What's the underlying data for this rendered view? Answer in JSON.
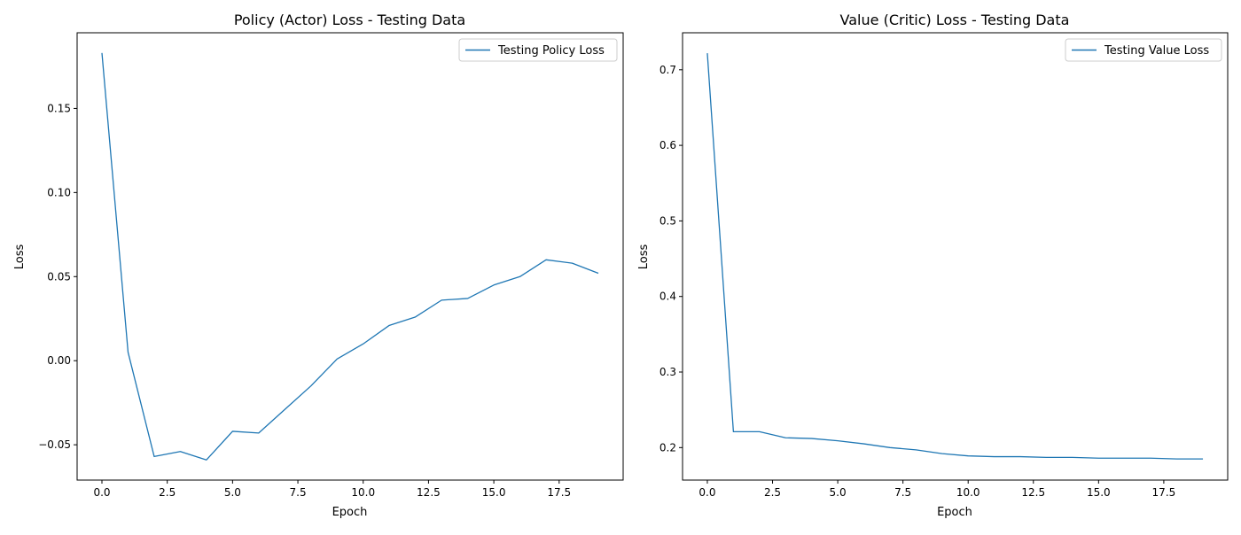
{
  "chart_data": [
    {
      "type": "line",
      "title": "Policy (Actor) Loss - Testing Data",
      "xlabel": "Epoch",
      "ylabel": "Loss",
      "xlim": [
        -0.95,
        19.95
      ],
      "ylim": [
        -0.071,
        0.195
      ],
      "xticks": [
        0,
        2.5,
        5,
        7.5,
        10,
        12.5,
        15,
        17.5
      ],
      "xtick_labels": [
        "0.0",
        "2.5",
        "5.0",
        "7.5",
        "10.0",
        "12.5",
        "15.0",
        "17.5"
      ],
      "yticks": [
        -0.05,
        0,
        0.05,
        0.1,
        0.15
      ],
      "ytick_labels": [
        "−0.05",
        "0.00",
        "0.05",
        "0.10",
        "0.15"
      ],
      "grid": false,
      "legend_position": "top-right",
      "color": "#1f77b4",
      "series": [
        {
          "name": "Testing Policy Loss",
          "x": [
            0,
            1,
            2,
            3,
            4,
            5,
            6,
            7,
            8,
            9,
            10,
            11,
            12,
            13,
            14,
            15,
            16,
            17,
            18,
            19
          ],
          "values": [
            0.183,
            0.005,
            -0.057,
            -0.054,
            -0.059,
            -0.042,
            -0.043,
            -0.029,
            -0.015,
            0.001,
            0.01,
            0.021,
            0.026,
            0.036,
            0.037,
            0.045,
            0.05,
            0.06,
            0.058,
            0.052
          ]
        }
      ]
    },
    {
      "type": "line",
      "title": "Value (Critic) Loss - Testing Data",
      "xlabel": "Epoch",
      "ylabel": "Loss",
      "xlim": [
        -0.95,
        19.95
      ],
      "ylim": [
        0.157,
        0.749
      ],
      "xticks": [
        0,
        2.5,
        5,
        7.5,
        10,
        12.5,
        15,
        17.5
      ],
      "xtick_labels": [
        "0.0",
        "2.5",
        "5.0",
        "7.5",
        "10.0",
        "12.5",
        "15.0",
        "17.5"
      ],
      "yticks": [
        0.2,
        0.3,
        0.4,
        0.5,
        0.6,
        0.7
      ],
      "ytick_labels": [
        "0.2",
        "0.3",
        "0.4",
        "0.5",
        "0.6",
        "0.7"
      ],
      "grid": false,
      "legend_position": "top-right",
      "color": "#1f77b4",
      "series": [
        {
          "name": "Testing Value Loss",
          "x": [
            0,
            1,
            2,
            3,
            4,
            5,
            6,
            7,
            8,
            9,
            10,
            11,
            12,
            13,
            14,
            15,
            16,
            17,
            18,
            19
          ],
          "values": [
            0.722,
            0.221,
            0.221,
            0.213,
            0.212,
            0.209,
            0.205,
            0.2,
            0.197,
            0.192,
            0.189,
            0.188,
            0.188,
            0.187,
            0.187,
            0.186,
            0.186,
            0.186,
            0.185,
            0.185
          ]
        }
      ]
    }
  ]
}
